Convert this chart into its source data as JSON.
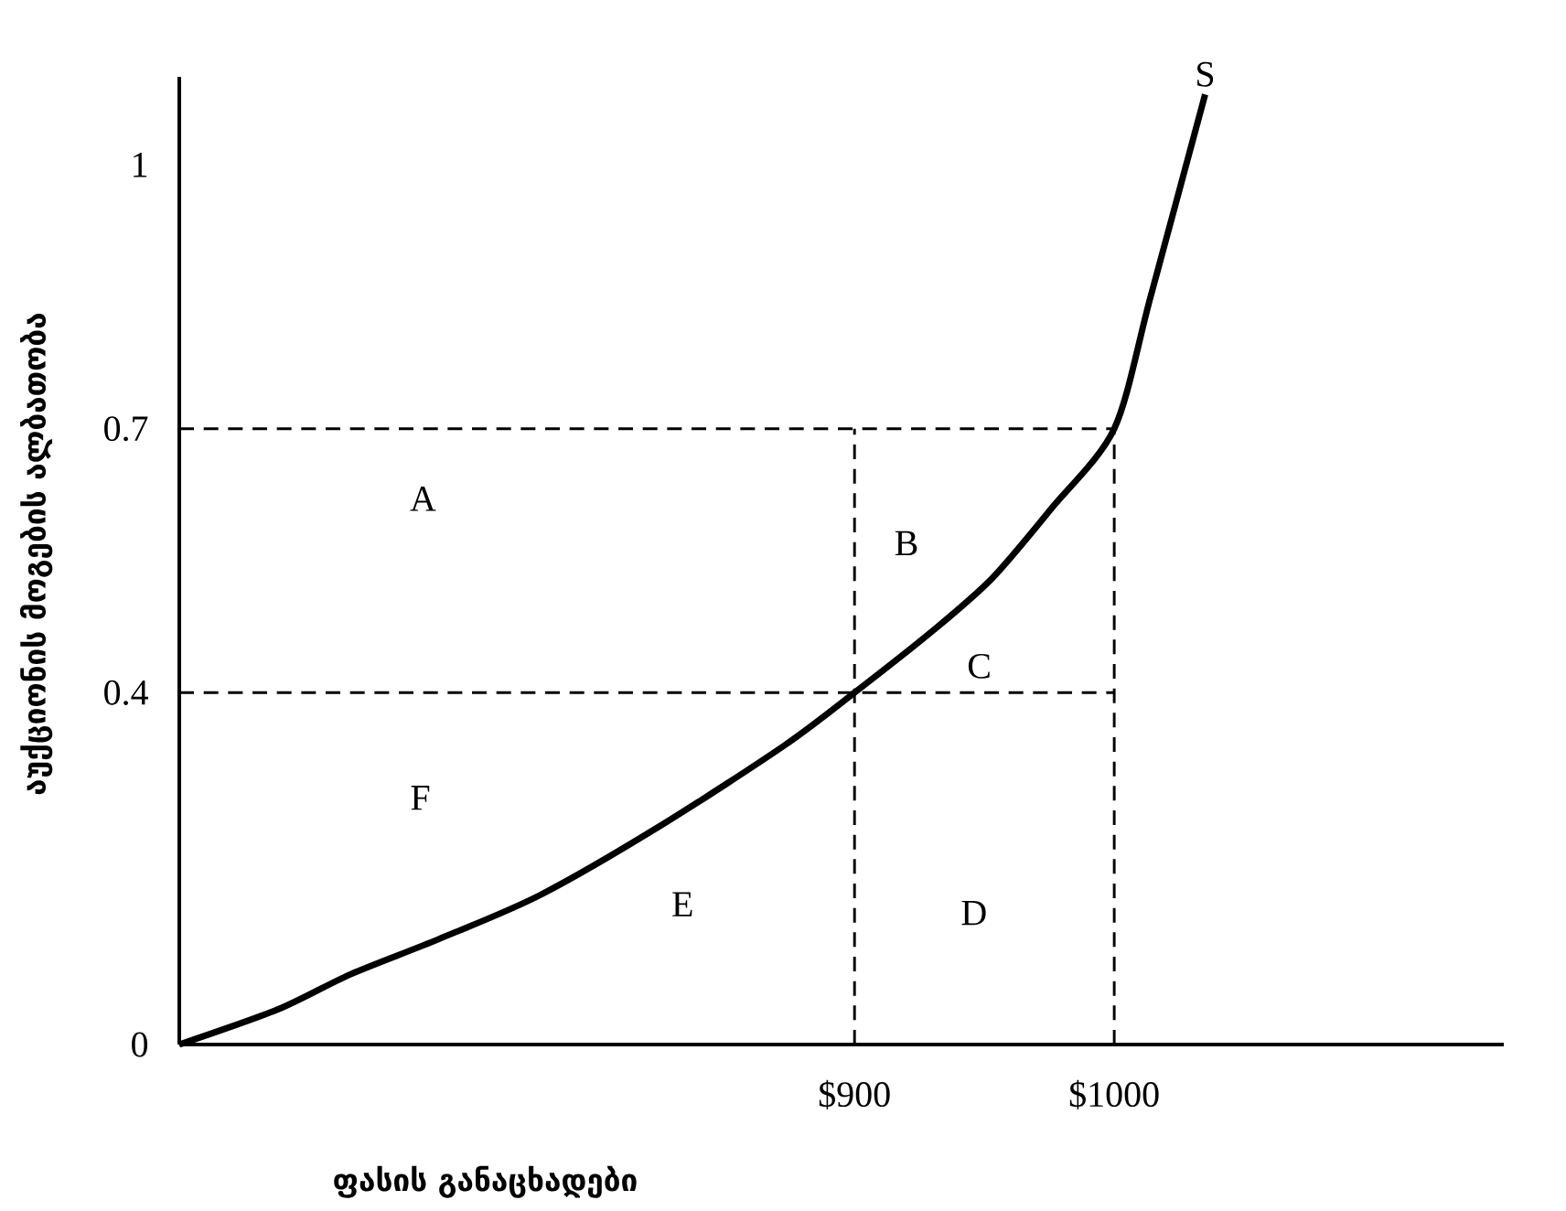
{
  "chart_data": {
    "type": "line",
    "xlabel": "ფასის განაცხადები",
    "ylabel": "აუქციონის მოგების ალბათობა",
    "xlim": [
      640,
      1150
    ],
    "ylim": [
      0,
      1.1
    ],
    "xticks": [
      {
        "value": 900,
        "label": "$900"
      },
      {
        "value": 1000,
        "label": "$1000"
      }
    ],
    "yticks": [
      0,
      0.4,
      0.7,
      1
    ],
    "series": [
      {
        "name": "S",
        "color": "#000000",
        "line_style": "solid",
        "x": [
          640,
          678,
          706,
          740,
          779,
          826,
          873,
          900,
          930,
          953,
          976,
          1000,
          1014,
          1035
        ],
        "values": [
          0,
          0.04,
          0.08,
          0.12,
          0.17,
          0.25,
          0.34,
          0.4,
          0.47,
          0.53,
          0.61,
          0.7,
          0.85,
          1.08
        ]
      },
      {
        "color": "#000000",
        "line_style": "dashed",
        "x": [
          640,
          1000
        ],
        "values": [
          0.7,
          0.7
        ]
      },
      {
        "color": "#000000",
        "line_style": "dashed",
        "x": [
          640,
          1000
        ],
        "values": [
          0.4,
          0.4
        ]
      },
      {
        "color": "#000000",
        "line_style": "dashed",
        "x": [
          900,
          900
        ],
        "values": [
          0,
          0.7
        ]
      },
      {
        "color": "#000000",
        "line_style": "dashed",
        "x": [
          1000,
          1000
        ],
        "values": [
          0,
          0.7
        ]
      }
    ],
    "annotations": [
      "A",
      "B",
      "C",
      "D",
      "E",
      "F"
    ]
  }
}
